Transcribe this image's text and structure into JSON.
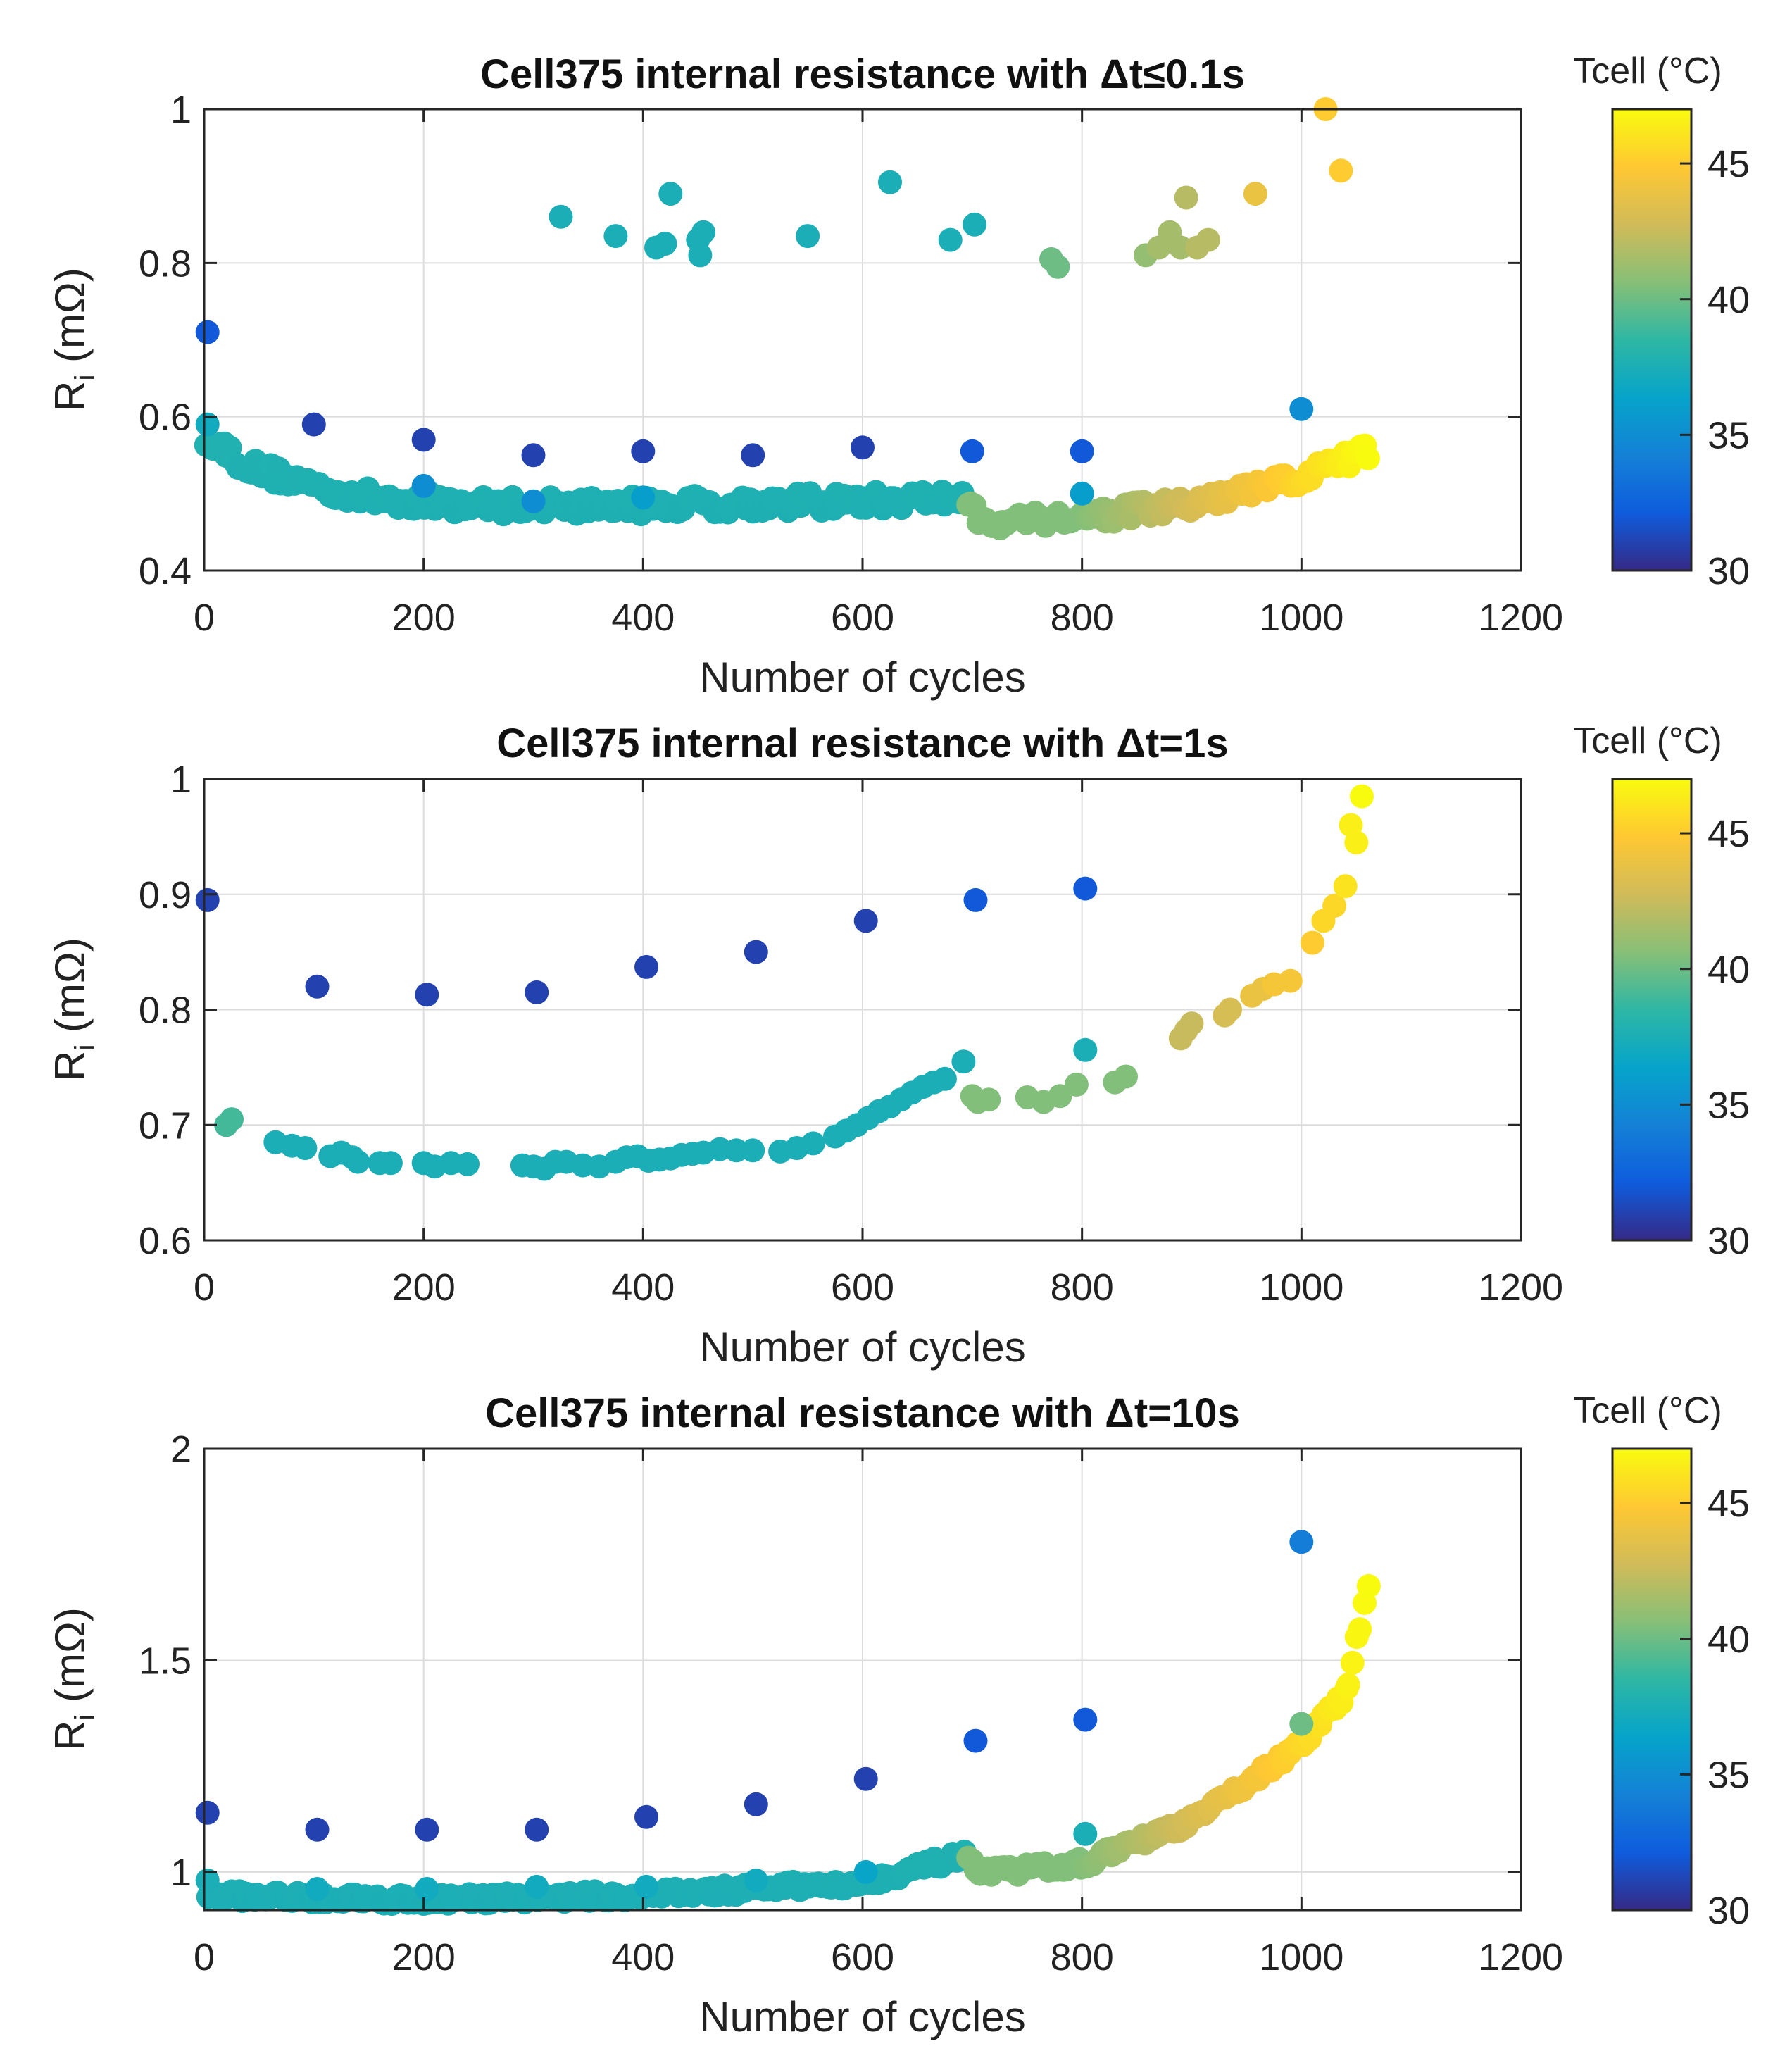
{
  "chart_data": [
    {
      "type": "scatter",
      "title": "Cell375 internal resistance with  Δt≤0.1s",
      "xlabel": "Number of cycles",
      "ylabel_main": "R",
      "ylabel_sub": "i",
      "ylabel_unit": " (mΩ)",
      "xlim": [
        0,
        1200
      ],
      "ylim": [
        0.4,
        1.0
      ],
      "xticks": [
        0,
        200,
        400,
        600,
        800,
        1000,
        1200
      ],
      "xtick_labels": [
        "0",
        "200",
        "400",
        "600",
        "800",
        "1000",
        "1200"
      ],
      "yticks": [
        0.4,
        0.6,
        0.8,
        1.0
      ],
      "ytick_labels": [
        "0.4",
        "0.6",
        "0.8",
        "1"
      ],
      "grid": true,
      "colorbar": {
        "label": "Tcell (°C)",
        "range": [
          30,
          47
        ],
        "ticks": [
          30,
          35,
          40,
          45
        ],
        "tick_labels": [
          "30",
          "35",
          "40",
          "45"
        ]
      },
      "outliers": [
        [
          3,
          0.71,
          32
        ],
        [
          3,
          0.59,
          37
        ],
        [
          100,
          0.59,
          31
        ],
        [
          200,
          0.57,
          31
        ],
        [
          300,
          0.55,
          31
        ],
        [
          400,
          0.555,
          31
        ],
        [
          500,
          0.55,
          31
        ],
        [
          600,
          0.56,
          31
        ],
        [
          700,
          0.555,
          32
        ],
        [
          800,
          0.555,
          32
        ],
        [
          1000,
          0.61,
          35
        ],
        [
          200,
          0.51,
          35
        ],
        [
          400,
          0.495,
          36
        ],
        [
          300,
          0.49,
          35
        ],
        [
          800,
          0.5,
          36
        ],
        [
          325,
          0.86,
          37.5
        ],
        [
          375,
          0.835,
          37.5
        ],
        [
          412,
          0.82,
          37.5
        ],
        [
          420,
          0.825,
          37.5
        ],
        [
          425,
          0.89,
          37.5
        ],
        [
          450,
          0.83,
          37.5
        ],
        [
          455,
          0.84,
          37.5
        ],
        [
          452,
          0.81,
          37.5
        ],
        [
          550,
          0.835,
          37.5
        ],
        [
          625,
          0.905,
          37.5
        ],
        [
          680,
          0.83,
          37.5
        ],
        [
          702,
          0.85,
          37.5
        ],
        [
          772,
          0.805,
          40
        ],
        [
          778,
          0.795,
          40
        ],
        [
          858,
          0.81,
          41
        ],
        [
          870,
          0.82,
          41.5
        ],
        [
          880,
          0.84,
          41.5
        ],
        [
          890,
          0.82,
          41.5
        ],
        [
          895,
          0.885,
          42
        ],
        [
          905,
          0.82,
          42
        ],
        [
          915,
          0.83,
          42
        ],
        [
          958,
          0.89,
          44
        ],
        [
          1022,
          1.0,
          45
        ],
        [
          1036,
          0.92,
          45
        ]
      ],
      "trend": {
        "nodes": [
          [
            3,
            0.575
          ],
          [
            40,
            0.535
          ],
          [
            100,
            0.51
          ],
          [
            150,
            0.495
          ],
          [
            250,
            0.485
          ],
          [
            400,
            0.485
          ],
          [
            600,
            0.49
          ],
          [
            695,
            0.495
          ],
          [
            705,
            0.465
          ],
          [
            800,
            0.47
          ],
          [
            900,
            0.485
          ],
          [
            1000,
            0.52
          ],
          [
            1060,
            0.555
          ]
        ],
        "count": 300,
        "jitter": 0.012
      }
    },
    {
      "type": "scatter",
      "title": "Cell375 internal resistance with  Δt=1s",
      "xlabel": "Number of cycles",
      "ylabel_main": "R",
      "ylabel_sub": "i",
      "ylabel_unit": " (mΩ)",
      "xlim": [
        0,
        1200
      ],
      "ylim": [
        0.6,
        1.0
      ],
      "xticks": [
        0,
        200,
        400,
        600,
        800,
        1000,
        1200
      ],
      "xtick_labels": [
        "0",
        "200",
        "400",
        "600",
        "800",
        "1000",
        "1200"
      ],
      "yticks": [
        0.6,
        0.7,
        0.8,
        0.9,
        1.0
      ],
      "ytick_labels": [
        "0.6",
        "0.7",
        "0.8",
        "0.9",
        "1"
      ],
      "grid": true,
      "colorbar": {
        "label": "Tcell (°C)",
        "range": [
          30,
          47
        ],
        "ticks": [
          30,
          35,
          40,
          45
        ],
        "tick_labels": [
          "30",
          "35",
          "40",
          "45"
        ]
      },
      "outliers": [
        [
          3,
          0.895,
          31
        ],
        [
          103,
          0.82,
          31
        ],
        [
          203,
          0.813,
          31
        ],
        [
          303,
          0.815,
          31
        ],
        [
          403,
          0.837,
          31
        ],
        [
          503,
          0.85,
          31
        ],
        [
          603,
          0.877,
          31
        ],
        [
          703,
          0.895,
          32
        ],
        [
          803,
          0.905,
          32
        ],
        [
          692,
          0.755,
          37.5
        ],
        [
          803,
          0.765,
          37.5
        ],
        [
          25,
          0.705,
          39
        ],
        [
          20,
          0.7,
          39
        ],
        [
          1055,
          0.985,
          47
        ],
        [
          1045,
          0.96,
          46.5
        ]
      ],
      "points": [
        [
          65,
          0.685,
          37.5
        ],
        [
          80,
          0.682,
          37.5
        ],
        [
          92,
          0.68,
          37.5
        ],
        [
          115,
          0.673,
          37.5
        ],
        [
          125,
          0.676,
          37.5
        ],
        [
          135,
          0.672,
          37.5
        ],
        [
          140,
          0.668,
          37.5
        ],
        [
          160,
          0.667,
          37.5
        ],
        [
          170,
          0.667,
          37.5
        ],
        [
          200,
          0.667,
          37.5
        ],
        [
          210,
          0.664,
          37.5
        ],
        [
          225,
          0.667,
          37.5
        ],
        [
          240,
          0.666,
          37.5
        ],
        [
          290,
          0.665,
          37.5
        ],
        [
          300,
          0.664,
          37.5
        ],
        [
          310,
          0.662,
          37.5
        ],
        [
          320,
          0.668,
          37.5
        ],
        [
          330,
          0.668,
          37.5
        ],
        [
          345,
          0.665,
          37.5
        ],
        [
          360,
          0.664,
          37.5
        ],
        [
          375,
          0.668,
          37.5
        ],
        [
          385,
          0.672,
          37.5
        ],
        [
          395,
          0.673,
          37.5
        ],
        [
          405,
          0.669,
          37.5
        ],
        [
          415,
          0.67,
          37.5
        ],
        [
          425,
          0.671,
          37.5
        ],
        [
          435,
          0.674,
          37.5
        ],
        [
          445,
          0.675,
          37.5
        ],
        [
          455,
          0.676,
          37.5
        ],
        [
          470,
          0.679,
          37.5
        ],
        [
          485,
          0.678,
          37.5
        ],
        [
          500,
          0.678,
          37.5
        ],
        [
          525,
          0.677,
          37.5
        ],
        [
          540,
          0.68,
          37.5
        ],
        [
          555,
          0.684,
          37.5
        ],
        [
          575,
          0.69,
          37.5
        ],
        [
          585,
          0.695,
          37.5
        ],
        [
          595,
          0.7,
          37.5
        ],
        [
          605,
          0.706,
          37.5
        ],
        [
          615,
          0.712,
          37.5
        ],
        [
          625,
          0.716,
          37.5
        ],
        [
          635,
          0.722,
          37.5
        ],
        [
          645,
          0.728,
          37.5
        ],
        [
          655,
          0.733,
          37.5
        ],
        [
          665,
          0.737,
          37.5
        ],
        [
          675,
          0.74,
          37.5
        ],
        [
          700,
          0.725,
          40.5
        ],
        [
          705,
          0.72,
          40.5
        ],
        [
          715,
          0.722,
          40.5
        ],
        [
          750,
          0.724,
          40.5
        ],
        [
          765,
          0.72,
          40.5
        ],
        [
          780,
          0.725,
          40.5
        ],
        [
          795,
          0.735,
          40.5
        ],
        [
          830,
          0.737,
          40.5
        ],
        [
          840,
          0.742,
          40.5
        ],
        [
          890,
          0.775,
          42.5
        ],
        [
          895,
          0.782,
          42.5
        ],
        [
          900,
          0.788,
          42.5
        ],
        [
          930,
          0.795,
          43
        ],
        [
          935,
          0.8,
          43
        ],
        [
          955,
          0.812,
          44
        ],
        [
          965,
          0.818,
          44
        ],
        [
          975,
          0.822,
          44.5
        ],
        [
          990,
          0.825,
          44.5
        ],
        [
          1010,
          0.858,
          45
        ],
        [
          1020,
          0.877,
          45.5
        ],
        [
          1030,
          0.89,
          45.5
        ],
        [
          1040,
          0.907,
          46
        ],
        [
          1050,
          0.945,
          46.5
        ]
      ]
    },
    {
      "type": "scatter",
      "title": "Cell375 internal resistance with  Δt=10s",
      "xlabel": "Number of cycles",
      "ylabel_main": "R",
      "ylabel_sub": "i",
      "ylabel_unit": " (mΩ)",
      "xlim": [
        0,
        1200
      ],
      "ylim": [
        0.91,
        2.0
      ],
      "xticks": [
        0,
        200,
        400,
        600,
        800,
        1000,
        1200
      ],
      "xtick_labels": [
        "0",
        "200",
        "400",
        "600",
        "800",
        "1000",
        "1200"
      ],
      "yticks": [
        1.0,
        1.5,
        2.0
      ],
      "ytick_labels": [
        "1",
        "1.5",
        "2"
      ],
      "grid": true,
      "colorbar": {
        "label": "Tcell (°C)",
        "range": [
          30,
          47
        ],
        "ticks": [
          30,
          35,
          40,
          45
        ],
        "tick_labels": [
          "30",
          "35",
          "40",
          "45"
        ]
      },
      "outliers": [
        [
          3,
          1.14,
          31
        ],
        [
          103,
          1.1,
          31
        ],
        [
          203,
          1.1,
          31
        ],
        [
          303,
          1.1,
          31
        ],
        [
          403,
          1.13,
          31
        ],
        [
          503,
          1.16,
          31
        ],
        [
          603,
          1.22,
          31
        ],
        [
          703,
          1.31,
          32
        ],
        [
          803,
          1.36,
          32
        ],
        [
          1000,
          1.78,
          34
        ],
        [
          803,
          1.09,
          37.5
        ],
        [
          1000,
          1.35,
          40
        ],
        [
          3,
          0.98,
          37.5
        ],
        [
          103,
          0.96,
          37
        ],
        [
          203,
          0.96,
          37
        ],
        [
          303,
          0.965,
          37
        ],
        [
          403,
          0.965,
          37
        ],
        [
          503,
          0.98,
          37
        ],
        [
          603,
          1.0,
          36.5
        ]
      ],
      "trend": {
        "nodes": [
          [
            3,
            0.945
          ],
          [
            200,
            0.935
          ],
          [
            400,
            0.945
          ],
          [
            600,
            0.975
          ],
          [
            695,
            1.04
          ],
          [
            705,
            0.995
          ],
          [
            800,
            1.02
          ],
          [
            900,
            1.12
          ],
          [
            1000,
            1.3
          ],
          [
            1040,
            1.42
          ],
          [
            1060,
            1.67
          ]
        ],
        "count": 330,
        "jitter": 0.012
      }
    }
  ]
}
